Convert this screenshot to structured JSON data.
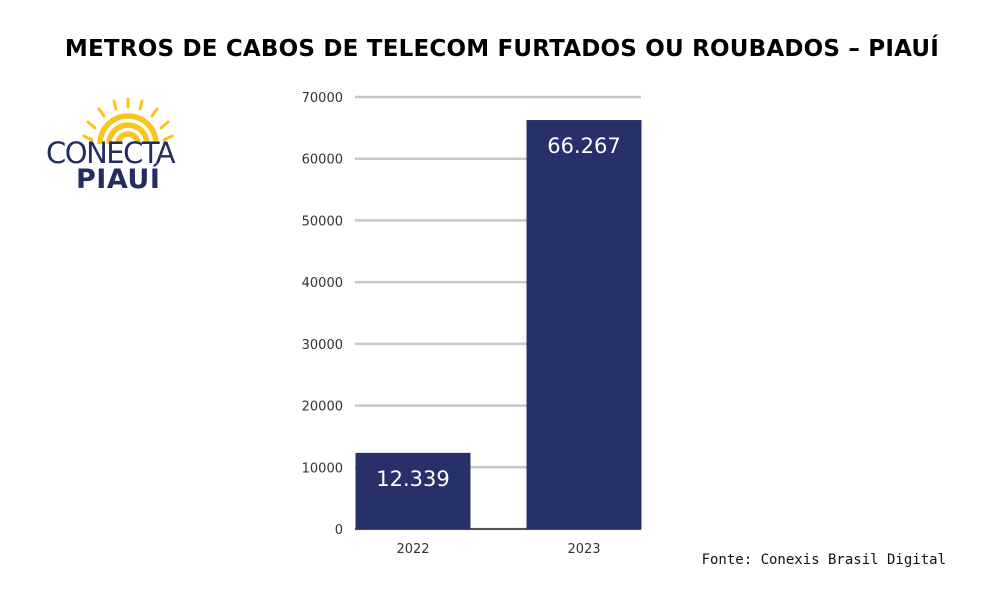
{
  "title": "METROS DE CABOS DE TELECOM FURTADOS OU ROUBADOS – PIAUÍ",
  "logo": {
    "line1": "CONECTA",
    "line2": "PIAUÍ",
    "icon": "sun-rays-logo-icon",
    "color_text": "#232d5f",
    "color_rays": "#f7c51b"
  },
  "source": "Fonte: Conexis Brasil Digital",
  "colors": {
    "bar": "#28306a",
    "grid": "#c8c8c8",
    "axis_text": "#333333",
    "label_text": "#ffffff"
  },
  "chart_data": {
    "type": "bar",
    "title": "METROS DE CABOS DE TELECOM FURTADOS OU ROUBADOS – PIAUÍ",
    "categories": [
      "2022",
      "2023"
    ],
    "values": [
      12339,
      66267
    ],
    "data_labels": [
      "12.339",
      "66.267"
    ],
    "yticks": [
      0,
      10000,
      20000,
      30000,
      40000,
      50000,
      60000,
      70000
    ],
    "ylim": [
      0,
      70000
    ],
    "xlabel": "",
    "ylabel": "",
    "grid": true,
    "legend": "none"
  }
}
